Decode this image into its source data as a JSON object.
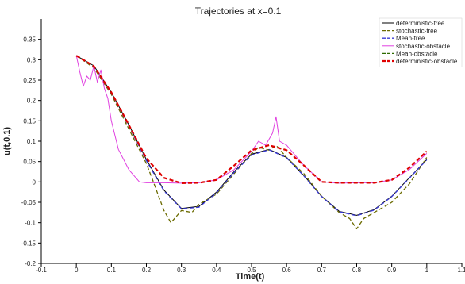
{
  "chart_data": {
    "type": "line",
    "title": "Trajectories at x=0.1",
    "xlabel": "Time(t)",
    "ylabel": "u(t,0.1)",
    "xlim": [
      -0.1,
      1.1
    ],
    "ylim": [
      -0.2,
      0.4
    ],
    "xticks": [
      -0.1,
      0,
      0.1,
      0.2,
      0.3,
      0.4,
      0.5,
      0.6,
      0.7,
      0.8,
      0.9,
      1,
      1.1
    ],
    "xtick_labels": [
      "-0.1",
      "0",
      "0.1",
      "0.2",
      "0.3",
      "0.4",
      "0.5",
      "0.6",
      "0.7",
      "0.8",
      "0.9",
      "1",
      "1.1"
    ],
    "yticks": [
      -0.2,
      -0.15,
      -0.1,
      -0.05,
      0,
      0.05,
      0.1,
      0.15,
      0.2,
      0.25,
      0.3,
      0.35
    ],
    "ytick_labels": [
      "-0.2",
      "-0.15",
      "-0.1",
      "-0.05",
      "0",
      "0.05",
      "0.1",
      "0.15",
      "0.2",
      "0.25",
      "0.3",
      "0.35"
    ],
    "grid": false,
    "legend_position": "top-right",
    "series": [
      {
        "name": "deterministic-free",
        "color": "#000000",
        "dash": "solid",
        "width": 1,
        "x": [
          0,
          0.05,
          0.1,
          0.15,
          0.2,
          0.25,
          0.3,
          0.35,
          0.4,
          0.45,
          0.5,
          0.55,
          0.6,
          0.65,
          0.7,
          0.75,
          0.8,
          0.85,
          0.9,
          0.95,
          1.0
        ],
        "y": [
          0.31,
          0.285,
          0.22,
          0.14,
          0.055,
          -0.02,
          -0.065,
          -0.06,
          -0.025,
          0.025,
          0.068,
          0.08,
          0.06,
          0.015,
          -0.035,
          -0.072,
          -0.082,
          -0.068,
          -0.035,
          0.01,
          0.055
        ]
      },
      {
        "name": "stochastic-free",
        "color": "#6b6b00",
        "dash": "dashed",
        "width": 1.3,
        "x": [
          0,
          0.05,
          0.1,
          0.15,
          0.2,
          0.22,
          0.25,
          0.27,
          0.3,
          0.33,
          0.35,
          0.4,
          0.45,
          0.5,
          0.52,
          0.55,
          0.57,
          0.6,
          0.65,
          0.7,
          0.75,
          0.78,
          0.8,
          0.82,
          0.85,
          0.9,
          0.95,
          1.0
        ],
        "y": [
          0.31,
          0.28,
          0.215,
          0.13,
          0.045,
          0.0,
          -0.07,
          -0.1,
          -0.07,
          -0.075,
          -0.055,
          -0.03,
          0.02,
          0.07,
          0.085,
          0.078,
          0.09,
          0.06,
          0.02,
          -0.035,
          -0.075,
          -0.09,
          -0.115,
          -0.09,
          -0.075,
          -0.05,
          -0.005,
          0.06
        ]
      },
      {
        "name": "Mean-free",
        "color": "#3b3bd6",
        "dash": "dashed",
        "width": 1.3,
        "x": [
          0,
          0.05,
          0.1,
          0.15,
          0.2,
          0.25,
          0.3,
          0.35,
          0.4,
          0.45,
          0.5,
          0.55,
          0.6,
          0.65,
          0.7,
          0.75,
          0.8,
          0.85,
          0.9,
          0.95,
          1.0
        ],
        "y": [
          0.31,
          0.283,
          0.218,
          0.137,
          0.052,
          -0.022,
          -0.066,
          -0.062,
          -0.027,
          0.023,
          0.066,
          0.079,
          0.059,
          0.014,
          -0.036,
          -0.073,
          -0.083,
          -0.069,
          -0.036,
          0.009,
          0.054
        ]
      },
      {
        "name": "stochastic-obstacle",
        "color": "#e040e0",
        "dash": "solid",
        "width": 1,
        "x": [
          0,
          0.01,
          0.02,
          0.03,
          0.04,
          0.05,
          0.06,
          0.07,
          0.08,
          0.09,
          0.1,
          0.12,
          0.15,
          0.18,
          0.2,
          0.25,
          0.3,
          0.35,
          0.4,
          0.45,
          0.5,
          0.52,
          0.54,
          0.56,
          0.57,
          0.58,
          0.6,
          0.62,
          0.65,
          0.7,
          0.75,
          0.8,
          0.85,
          0.9,
          0.95,
          1.0
        ],
        "y": [
          0.31,
          0.27,
          0.235,
          0.26,
          0.25,
          0.285,
          0.245,
          0.275,
          0.23,
          0.205,
          0.15,
          0.08,
          0.03,
          0.0,
          -0.002,
          -0.002,
          -0.003,
          -0.002,
          0.005,
          0.03,
          0.075,
          0.1,
          0.09,
          0.12,
          0.16,
          0.1,
          0.09,
          0.07,
          0.04,
          0.0,
          -0.003,
          -0.002,
          -0.002,
          0.005,
          0.03,
          0.07
        ]
      },
      {
        "name": "Mean-obstacle",
        "color": "#2e6b00",
        "dash": "dashed",
        "width": 1.3,
        "x": [
          0,
          0.05,
          0.1,
          0.15,
          0.2,
          0.25,
          0.3,
          0.35,
          0.4,
          0.45,
          0.5,
          0.55,
          0.6,
          0.65,
          0.7,
          0.75,
          0.8,
          0.85,
          0.9,
          0.95,
          1.0
        ],
        "y": [
          0.31,
          0.284,
          0.22,
          0.14,
          0.058,
          0.01,
          -0.003,
          -0.002,
          0.005,
          0.04,
          0.078,
          0.09,
          0.078,
          0.04,
          0.0,
          -0.002,
          -0.002,
          -0.002,
          0.005,
          0.035,
          0.075
        ]
      },
      {
        "name": "deterministic-obstacle",
        "color": "#e00000",
        "dash": "dashed",
        "width": 2.2,
        "x": [
          0,
          0.05,
          0.1,
          0.15,
          0.2,
          0.25,
          0.3,
          0.35,
          0.4,
          0.45,
          0.5,
          0.55,
          0.6,
          0.65,
          0.7,
          0.75,
          0.8,
          0.85,
          0.9,
          0.95,
          1.0
        ],
        "y": [
          0.31,
          0.284,
          0.22,
          0.14,
          0.058,
          0.01,
          -0.003,
          -0.002,
          0.005,
          0.04,
          0.078,
          0.09,
          0.078,
          0.04,
          0.0,
          -0.002,
          -0.002,
          -0.002,
          0.005,
          0.035,
          0.075
        ]
      }
    ]
  }
}
